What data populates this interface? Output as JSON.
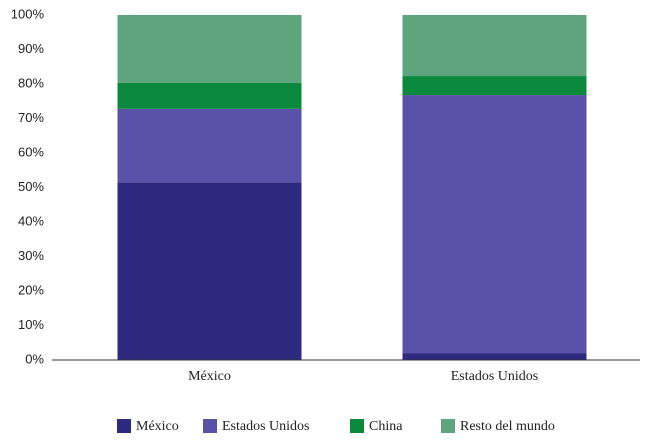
{
  "chart_data": {
    "type": "stacked_bar",
    "categories": [
      "México",
      "Estados Unidos"
    ],
    "series": [
      {
        "name": "México",
        "color": "#2e2a7f",
        "values": [
          51.5,
          2
        ]
      },
      {
        "name": "Estados Unidos",
        "color": "#5a52a8",
        "values": [
          21.3,
          74.8
        ]
      },
      {
        "name": "China",
        "color": "#0b8a3e",
        "values": [
          7.5,
          5.5
        ]
      },
      {
        "name": "Resto del mundo",
        "color": "#5ea57e",
        "values": [
          19.7,
          17.7
        ]
      }
    ],
    "ylim": [
      0,
      100
    ],
    "yticks": [
      {
        "value": 0,
        "label": "0%"
      },
      {
        "value": 10,
        "label": "10%"
      },
      {
        "value": 20,
        "label": "20%"
      },
      {
        "value": 30,
        "label": "30%"
      },
      {
        "value": 40,
        "label": "40%"
      },
      {
        "value": 50,
        "label": "50%"
      },
      {
        "value": 60,
        "label": "60%"
      },
      {
        "value": 70,
        "label": "70%"
      },
      {
        "value": 80,
        "label": "80%"
      },
      {
        "value": 90,
        "label": "90%"
      },
      {
        "value": 100,
        "label": "100%"
      }
    ],
    "legend": "bottom"
  }
}
